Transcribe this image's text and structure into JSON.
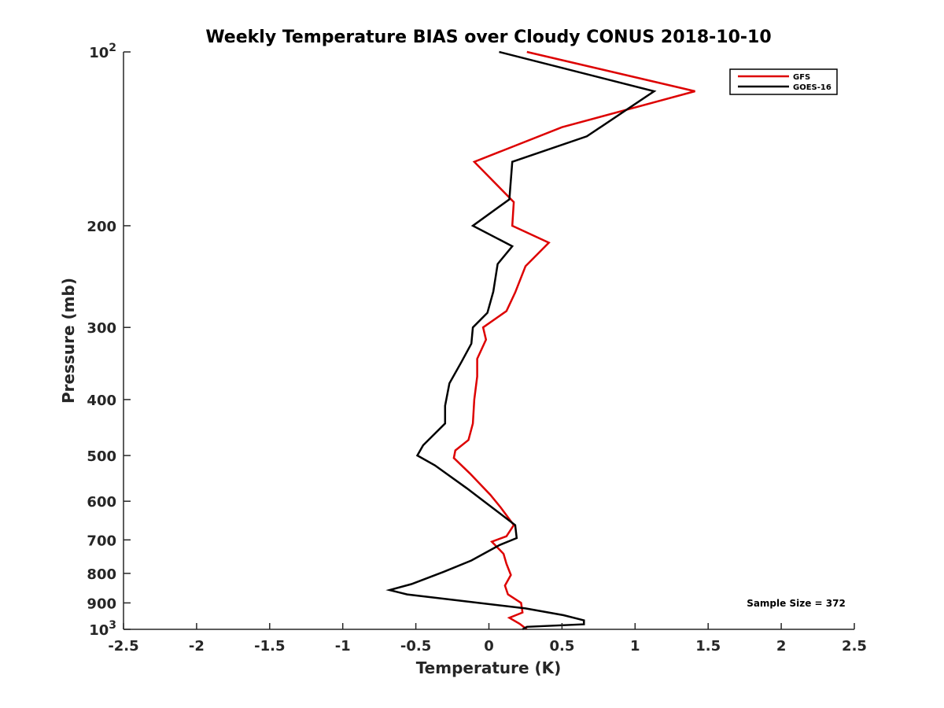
{
  "chart_data": {
    "type": "line",
    "title": "Weekly Temperature BIAS over Cloudy CONUS 2018-10-10",
    "xlabel": "Temperature (K)",
    "ylabel": "Pressure (mb)",
    "xlim": [
      -2.5,
      2.5
    ],
    "ylim": [
      100,
      1000
    ],
    "y_scale": "log",
    "y_reversed": true,
    "grid": false,
    "legend_position": "top-right",
    "x_ticks": [
      -2.5,
      -2,
      -1.5,
      -1,
      -0.5,
      0,
      0.5,
      1,
      1.5,
      2,
      2.5
    ],
    "x_tick_labels": [
      "-2.5",
      "-2",
      "-1.5",
      "-1",
      "-0.5",
      "0",
      "0.5",
      "1",
      "1.5",
      "2",
      "2.5"
    ],
    "y_ticks": [
      100,
      200,
      300,
      400,
      500,
      600,
      700,
      800,
      900,
      1000
    ],
    "y_tick_labels": [
      {
        "base": "10",
        "exp": "2"
      },
      {
        "base": "200",
        "exp": ""
      },
      {
        "base": "300",
        "exp": ""
      },
      {
        "base": "400",
        "exp": ""
      },
      {
        "base": "500",
        "exp": ""
      },
      {
        "base": "600",
        "exp": ""
      },
      {
        "base": "700",
        "exp": ""
      },
      {
        "base": "800",
        "exp": ""
      },
      {
        "base": "900",
        "exp": ""
      },
      {
        "base": "10",
        "exp": "3"
      }
    ],
    "annotation": "Sample Size = 372",
    "series": [
      {
        "name": "GFS",
        "color": "#dd0000",
        "points": [
          [
            0.26,
            100
          ],
          [
            1.41,
            117
          ],
          [
            0.5,
            135
          ],
          [
            -0.1,
            155
          ],
          [
            0.17,
            182
          ],
          [
            0.16,
            200
          ],
          [
            0.41,
            214
          ],
          [
            0.25,
            235
          ],
          [
            0.18,
            261
          ],
          [
            0.12,
            281
          ],
          [
            -0.04,
            300
          ],
          [
            -0.02,
            315
          ],
          [
            -0.08,
            340
          ],
          [
            -0.08,
            365
          ],
          [
            -0.1,
            400
          ],
          [
            -0.11,
            440
          ],
          [
            -0.14,
            470
          ],
          [
            -0.23,
            490
          ],
          [
            -0.24,
            505
          ],
          [
            -0.13,
            537
          ],
          [
            0.01,
            585
          ],
          [
            0.08,
            615
          ],
          [
            0.17,
            660
          ],
          [
            0.12,
            690
          ],
          [
            0.02,
            705
          ],
          [
            0.1,
            740
          ],
          [
            0.12,
            770
          ],
          [
            0.15,
            805
          ],
          [
            0.11,
            840
          ],
          [
            0.13,
            870
          ],
          [
            0.22,
            900
          ],
          [
            0.23,
            935
          ],
          [
            0.14,
            955
          ],
          [
            0.21,
            978
          ],
          [
            0.26,
            1000
          ]
        ]
      },
      {
        "name": "GOES-16",
        "color": "#000000",
        "points": [
          [
            0.07,
            100
          ],
          [
            1.13,
            117
          ],
          [
            0.67,
            140
          ],
          [
            0.16,
            155
          ],
          [
            0.14,
            180
          ],
          [
            -0.11,
            200
          ],
          [
            0.16,
            217
          ],
          [
            0.06,
            233
          ],
          [
            0.03,
            260
          ],
          [
            -0.01,
            283
          ],
          [
            -0.11,
            300
          ],
          [
            -0.12,
            320
          ],
          [
            -0.19,
            345
          ],
          [
            -0.27,
            375
          ],
          [
            -0.3,
            410
          ],
          [
            -0.3,
            440
          ],
          [
            -0.45,
            480
          ],
          [
            -0.49,
            500
          ],
          [
            -0.37,
            520
          ],
          [
            -0.15,
            570
          ],
          [
            0.18,
            660
          ],
          [
            0.19,
            695
          ],
          [
            0.07,
            715
          ],
          [
            -0.12,
            760
          ],
          [
            -0.31,
            795
          ],
          [
            -0.53,
            835
          ],
          [
            -0.68,
            855
          ],
          [
            -0.56,
            870
          ],
          [
            0.25,
            920
          ],
          [
            0.51,
            945
          ],
          [
            0.65,
            965
          ],
          [
            0.65,
            980
          ],
          [
            0.26,
            990
          ],
          [
            0.23,
            1000
          ]
        ]
      }
    ]
  }
}
